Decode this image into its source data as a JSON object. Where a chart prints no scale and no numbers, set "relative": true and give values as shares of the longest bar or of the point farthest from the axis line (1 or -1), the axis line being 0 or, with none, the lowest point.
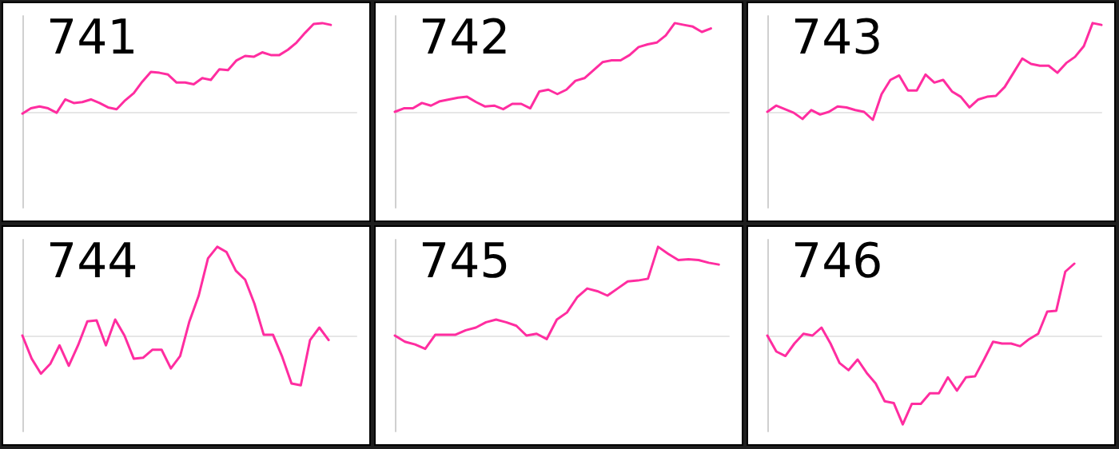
{
  "chart_data": [
    {
      "type": "line",
      "title": "741",
      "relative": true,
      "marker": "none",
      "line_style": "solid",
      "categories": [
        null,
        null,
        null,
        null,
        null,
        null,
        null,
        null,
        null,
        null,
        null,
        null,
        null,
        null,
        null,
        null,
        null,
        null,
        null,
        null,
        null,
        null,
        null,
        null,
        null,
        null,
        null,
        null,
        null,
        null,
        null,
        null,
        null,
        null,
        null,
        null,
        null,
        null,
        null,
        null
      ],
      "series": [
        {
          "color": "#ff2da0",
          "values": [
            -0.02,
            0.04,
            0.06,
            0.04,
            -0.01,
            0.14,
            0.1,
            0.11,
            0.14,
            0.1,
            0.05,
            0.03,
            0.13,
            0.21,
            0.34,
            0.45,
            0.44,
            0.42,
            0.33,
            0.33,
            0.31,
            0.38,
            0.36,
            0.48,
            0.47,
            0.58,
            0.63,
            0.62,
            0.67,
            0.64,
            0.64,
            0.7,
            0.78,
            0.89,
            0.99,
            1,
            0.98,
            null,
            null,
            null
          ]
        }
      ]
    },
    {
      "type": "line",
      "title": "742",
      "relative": true,
      "marker": "none",
      "line_style": "solid",
      "categories": [
        null,
        null,
        null,
        null,
        null,
        null,
        null,
        null,
        null,
        null,
        null,
        null,
        null,
        null,
        null,
        null,
        null,
        null,
        null,
        null,
        null,
        null,
        null,
        null,
        null,
        null,
        null,
        null,
        null,
        null,
        null,
        null,
        null,
        null,
        null,
        null,
        null,
        null
      ],
      "series": [
        {
          "color": "#ff2da0",
          "values": [
            0,
            0.04,
            0.04,
            0.1,
            0.07,
            0.12,
            0.14,
            0.16,
            0.17,
            0.11,
            0.06,
            0.07,
            0.03,
            0.09,
            0.09,
            0.04,
            0.23,
            0.25,
            0.2,
            0.25,
            0.35,
            0.38,
            0.47,
            0.56,
            0.58,
            0.58,
            0.64,
            0.73,
            0.76,
            0.78,
            0.86,
            1,
            0.98,
            0.96,
            0.9,
            0.94,
            null,
            null
          ]
        }
      ]
    },
    {
      "type": "line",
      "title": "743",
      "relative": true,
      "marker": "none",
      "line_style": "solid",
      "categories": [
        null,
        null,
        null,
        null,
        null,
        null,
        null,
        null,
        null,
        null,
        null,
        null,
        null,
        null,
        null,
        null,
        null,
        null,
        null,
        null,
        null,
        null,
        null,
        null,
        null,
        null,
        null,
        null,
        null,
        null,
        null,
        null,
        null,
        null,
        null,
        null,
        null,
        null,
        null
      ],
      "series": [
        {
          "color": "#ff2da0",
          "values": [
            0,
            0.07,
            0.03,
            -0.01,
            -0.08,
            0.02,
            -0.03,
            0,
            0.06,
            0.05,
            0.02,
            0,
            -0.09,
            0.2,
            0.36,
            0.41,
            0.24,
            0.24,
            0.42,
            0.33,
            0.36,
            0.23,
            0.17,
            0.05,
            0.14,
            0.17,
            0.18,
            0.28,
            0.44,
            0.6,
            0.54,
            0.52,
            0.52,
            0.44,
            0.55,
            0.62,
            0.74,
            1,
            0.98
          ]
        }
      ]
    },
    {
      "type": "line",
      "title": "744",
      "relative": true,
      "marker": "none",
      "line_style": "solid",
      "categories": [
        null,
        null,
        null,
        null,
        null,
        null,
        null,
        null,
        null,
        null,
        null,
        null,
        null,
        null,
        null,
        null,
        null,
        null,
        null,
        null,
        null,
        null,
        null,
        null,
        null,
        null,
        null,
        null,
        null,
        null,
        null,
        null,
        null,
        null,
        null,
        null,
        null
      ],
      "series": [
        {
          "color": "#ff2da0",
          "values": [
            0,
            -0.26,
            -0.43,
            -0.32,
            -0.11,
            -0.34,
            -0.11,
            0.16,
            0.17,
            -0.11,
            0.18,
            0,
            -0.26,
            -0.25,
            -0.16,
            -0.16,
            -0.37,
            -0.23,
            0.16,
            0.45,
            0.87,
            1,
            0.94,
            0.73,
            0.63,
            0.36,
            0.01,
            0.01,
            -0.24,
            -0.54,
            -0.56,
            -0.05,
            0.09,
            -0.05,
            null,
            null,
            null
          ]
        }
      ]
    },
    {
      "type": "line",
      "title": "745",
      "relative": true,
      "marker": "none",
      "line_style": "solid",
      "categories": [
        null,
        null,
        null,
        null,
        null,
        null,
        null,
        null,
        null,
        null,
        null,
        null,
        null,
        null,
        null,
        null,
        null,
        null,
        null,
        null,
        null,
        null,
        null,
        null,
        null,
        null,
        null,
        null,
        null,
        null,
        null,
        null,
        null,
        null
      ],
      "series": [
        {
          "color": "#ff2da0",
          "values": [
            0,
            -0.07,
            -0.1,
            -0.15,
            0.01,
            0.01,
            0.01,
            0.06,
            0.09,
            0.15,
            0.18,
            0.15,
            0.11,
            0,
            0.02,
            -0.04,
            0.18,
            0.26,
            0.43,
            0.53,
            0.5,
            0.45,
            0.53,
            0.61,
            0.62,
            0.64,
            1,
            0.92,
            0.85,
            0.86,
            0.85,
            0.82,
            0.8,
            null
          ]
        }
      ]
    },
    {
      "type": "line",
      "title": "746",
      "relative": true,
      "marker": "none",
      "line_style": "solid",
      "categories": [
        null,
        null,
        null,
        null,
        null,
        null,
        null,
        null,
        null,
        null,
        null,
        null,
        null,
        null,
        null,
        null,
        null,
        null,
        null,
        null,
        null,
        null,
        null,
        null,
        null,
        null,
        null,
        null,
        null,
        null,
        null,
        null,
        null,
        null,
        null,
        null,
        null,
        null
      ],
      "series": [
        {
          "color": "#ff2da0",
          "values": [
            0,
            -0.18,
            -0.23,
            -0.09,
            0.02,
            0,
            0.09,
            -0.09,
            -0.31,
            -0.39,
            -0.27,
            -0.42,
            -0.54,
            -0.74,
            -0.76,
            -1,
            -0.77,
            -0.77,
            -0.65,
            -0.65,
            -0.47,
            -0.62,
            -0.47,
            -0.46,
            -0.27,
            -0.07,
            -0.09,
            -0.09,
            -0.12,
            -0.04,
            0.02,
            0.27,
            0.28,
            0.72,
            0.81,
            null,
            null,
            null
          ]
        }
      ]
    }
  ]
}
